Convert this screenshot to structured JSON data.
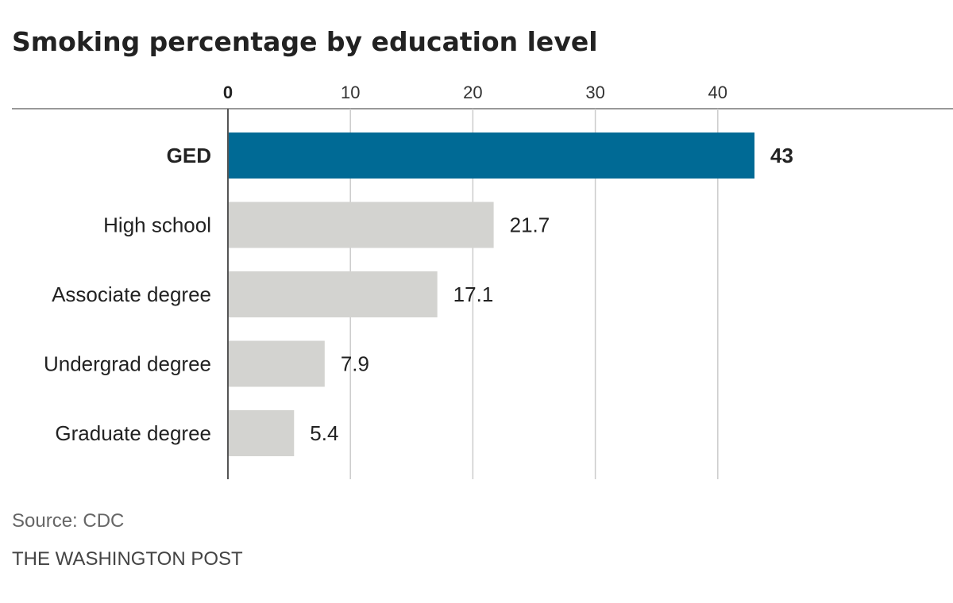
{
  "chart_data": {
    "type": "bar",
    "orientation": "horizontal",
    "title": "Smoking percentage by education level",
    "categories": [
      "GED",
      "High school",
      "Associate degree",
      "Undergrad degree",
      "Graduate degree"
    ],
    "values": [
      43,
      21.7,
      17.1,
      7.9,
      5.4
    ],
    "value_labels": [
      "43",
      "21.7",
      "17.1",
      "7.9",
      "5.4"
    ],
    "highlight_index": 0,
    "xlim": [
      0,
      50
    ],
    "xticks": [
      0,
      10,
      20,
      30,
      40
    ],
    "grid": true,
    "xlabel": "",
    "ylabel": ""
  },
  "footer": {
    "source": "Source: CDC",
    "publisher": "THE WASHINGTON POST"
  },
  "colors": {
    "highlight": "#006a95",
    "bar": "#d3d3d0",
    "grid": "#cccccc",
    "axis": "#555555",
    "divider": "#999999"
  }
}
